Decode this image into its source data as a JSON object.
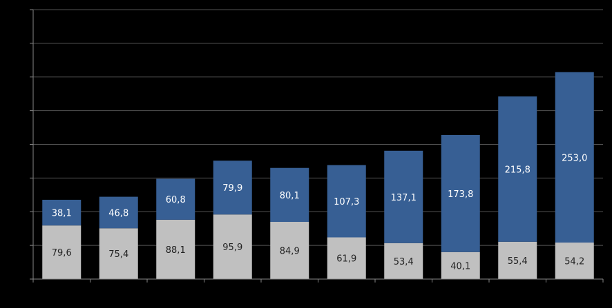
{
  "chart_data": {
    "type": "bar",
    "stacked": true,
    "categories": [
      "",
      "",
      "",
      "",
      "",
      "",
      "",
      "",
      "",
      ""
    ],
    "series": [
      {
        "color": "#c0c0c0",
        "label_color": "#222222",
        "values": [
          79.6,
          75.4,
          88.1,
          95.9,
          84.9,
          61.9,
          53.4,
          40.1,
          55.4,
          54.2
        ],
        "labels": [
          "79,6",
          "75,4",
          "88,1",
          "95,9",
          "84,9",
          "61,9",
          "53,4",
          "40,1",
          "55,4",
          "54,2"
        ]
      },
      {
        "color": "#375f94",
        "label_color": "#ffffff",
        "values": [
          38.1,
          46.8,
          60.8,
          79.9,
          80.1,
          107.3,
          137.1,
          173.8,
          215.8,
          253.0
        ],
        "labels": [
          "38,1",
          "46,8",
          "60,8",
          "79,9",
          "80,1",
          "107,3",
          "137,1",
          "173,8",
          "215,8",
          "253,0"
        ]
      }
    ],
    "ylim": [
      0,
      400
    ],
    "yticks": [
      0,
      50,
      100,
      150,
      200,
      250,
      300,
      350,
      400
    ],
    "grid": true,
    "legend": "none",
    "title": "",
    "xlabel": "",
    "ylabel": ""
  },
  "style": {
    "background": "#000000",
    "grid_color": "#555555",
    "axis_color": "#888888"
  }
}
